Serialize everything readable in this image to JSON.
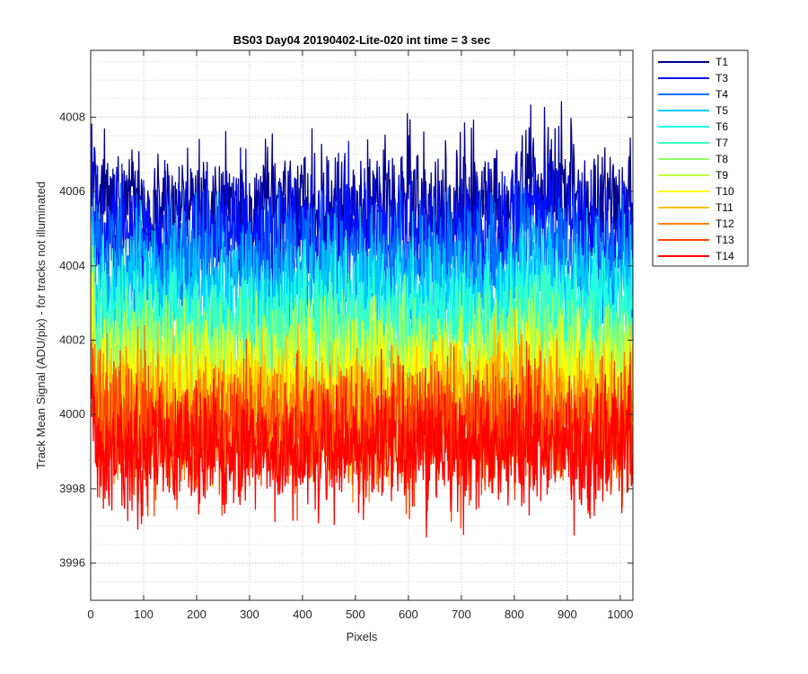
{
  "chart_data": {
    "type": "line",
    "title": "BS03 Day04 20190402-Lite-020 int time = 3 sec",
    "xlabel": "Pixels",
    "ylabel": "Track Mean Signal (ADU/pix) - for tracks not illuminated",
    "xlim": [
      0,
      1024
    ],
    "ylim": [
      3995,
      4009.8
    ],
    "x_ticks": [
      0,
      100,
      200,
      300,
      400,
      500,
      600,
      700,
      800,
      900,
      1000
    ],
    "y_ticks": [
      3996,
      3998,
      4000,
      4002,
      4004,
      4006,
      4008
    ],
    "grid": true,
    "legend_position": "outside-top-right",
    "x_range": [
      1,
      1024
    ],
    "series": [
      {
        "name": "T1",
        "color": "#00008f",
        "mean": 4005.6
      },
      {
        "name": "T3",
        "color": "#0010ff",
        "mean": 4004.8
      },
      {
        "name": "T4",
        "color": "#0070ff",
        "mean": 4004.1
      },
      {
        "name": "T5",
        "color": "#00c8ff",
        "mean": 4003.3
      },
      {
        "name": "T6",
        "color": "#20ffe0",
        "mean": 4002.6
      },
      {
        "name": "T7",
        "color": "#40ffc0",
        "mean": 4002.0
      },
      {
        "name": "T8",
        "color": "#90ff70",
        "mean": 4001.5
      },
      {
        "name": "T9",
        "color": "#c0ff40",
        "mean": 4001.1
      },
      {
        "name": "T10",
        "color": "#ffff00",
        "mean": 4000.7
      },
      {
        "name": "T11",
        "color": "#ffc000",
        "mean": 4000.3
      },
      {
        "name": "T12",
        "color": "#ff8000",
        "mean": 3999.9
      },
      {
        "name": "T13",
        "color": "#ff4000",
        "mean": 3999.5
      },
      {
        "name": "T14",
        "color": "#ff0000",
        "mean": 3999.1
      }
    ]
  }
}
